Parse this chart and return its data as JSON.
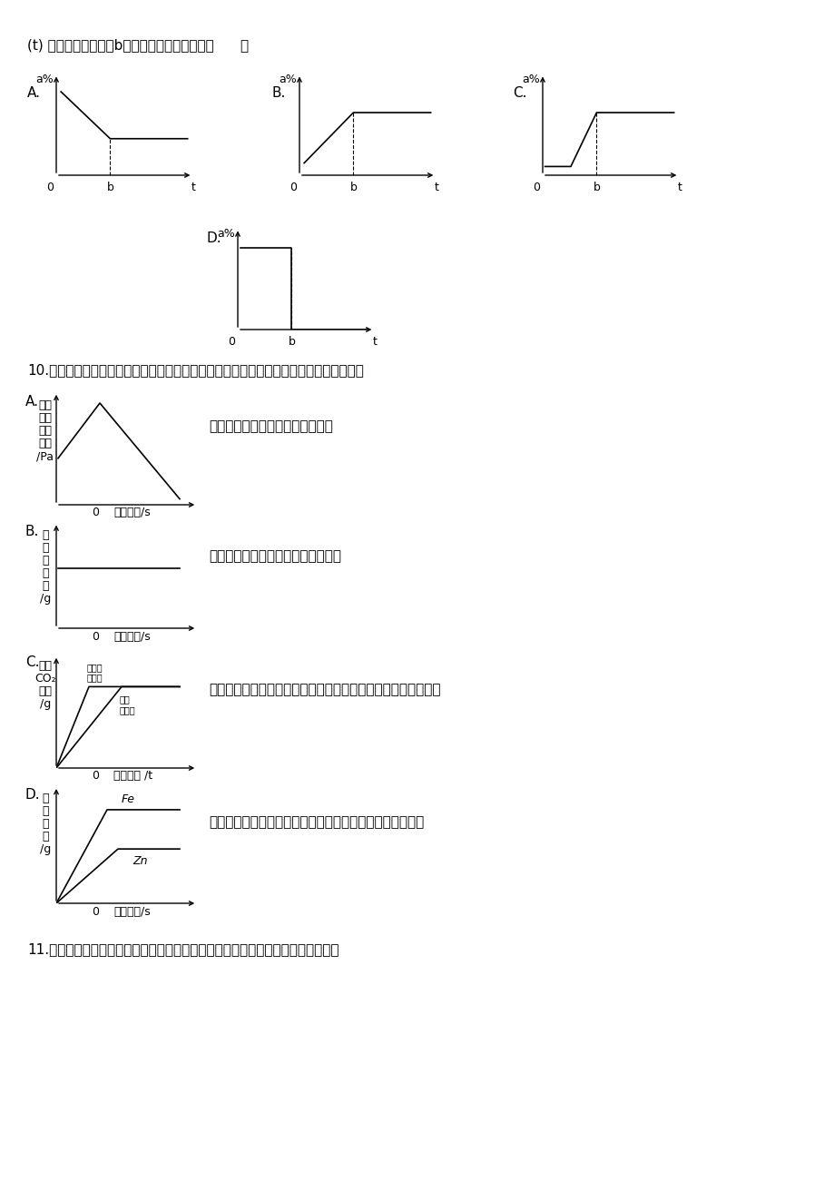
{
  "bg_color": "#ffffff",
  "q9_header": "(t) 变化的曲线图是（b时间表示反应已完全）（      ）",
  "q10_header": "10.　坐标图像是图与相关化学知识的具体体现。下列图像不能正确反映对应变化关系的是",
  "q11_header": "11.　发射神舌六号飞船的火箍，使用的是一种固体燃料，它燃烧的化学方程式为：",
  "q10A_desc": "在盛有空气的密闭容器中点燃红磷",
  "q10B_desc": "用二氧化锰和过氧化氢溶液制取氧气",
  "q10C_desc": "分别向等质量不同形状的石灰石中加入足量等质量分数的稀盐酸",
  "q10D_desc": "分别向等质量的锤粉和鐵粉中加入足量等质量分数的稀盐酸",
  "q10A_ylabel": [
    "容器",
    "内的",
    "气体",
    "压强",
    "/Pa"
  ],
  "q10B_ylabel": [
    "固",
    "体",
    "的",
    "质",
    "量",
    "/g"
  ],
  "q10C_ylabel": [
    "生成",
    "CO₂",
    "质量",
    "/g"
  ],
  "q10D_ylabel": [
    "氢",
    "气",
    "质",
    "量",
    "/g"
  ],
  "powder_label": "粉末状\n石灰石",
  "block_label": "块状\n石灰石",
  "fe_label": "Fe",
  "zn_label": "Zn"
}
